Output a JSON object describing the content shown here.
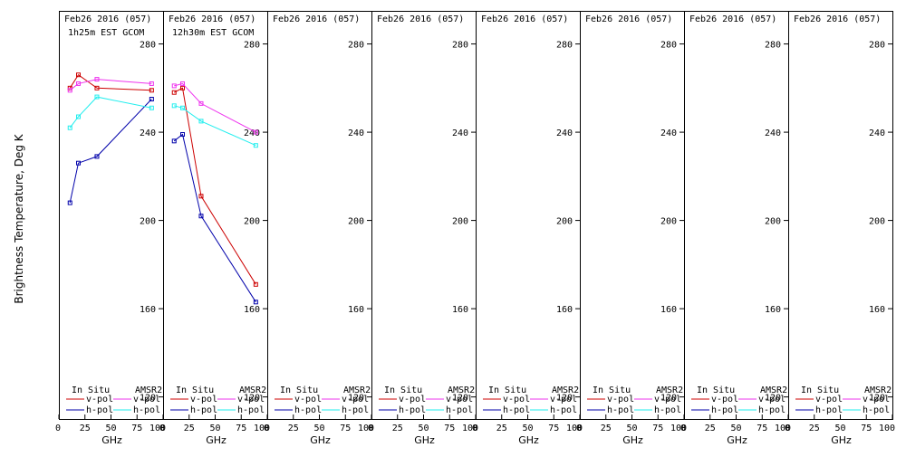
{
  "ylabel": "Brightness Temperature, Deg K",
  "xlabel": "GHz",
  "legend": {
    "insitu": "In Situ",
    "amsr2": "AMSR2",
    "vpol": "v-pol",
    "hpol": "h-pol"
  },
  "colors": {
    "insitu_v": "#cc0000",
    "insitu_h": "#0000aa",
    "amsr2_v": "#ee33ee",
    "amsr2_h": "#22eeee",
    "axis": "#000000"
  },
  "chart_data": {
    "type": "line",
    "xlim": [
      0,
      100
    ],
    "ylim": [
      110,
      295
    ],
    "xticks": [
      0,
      25,
      50,
      75,
      100
    ],
    "yticks": [
      120,
      160,
      200,
      240,
      280
    ],
    "panels": [
      {
        "title": "Feb26 2016 (057)",
        "subtitle": "1h25m EST GCOM",
        "series": [
          {
            "id": "insitu_v",
            "x": [
              10.65,
              18.7,
              36.5,
              89
            ],
            "y": [
              260,
              266,
              260,
              259
            ]
          },
          {
            "id": "insitu_h",
            "x": [
              10.65,
              18.7,
              36.5,
              89
            ],
            "y": [
              208,
              226,
              229,
              255
            ]
          },
          {
            "id": "amsr2_v",
            "x": [
              10.65,
              18.7,
              36.5,
              89
            ],
            "y": [
              259,
              262,
              264,
              262
            ]
          },
          {
            "id": "amsr2_h",
            "x": [
              10.65,
              18.7,
              36.5,
              89
            ],
            "y": [
              242,
              247,
              256,
              251
            ]
          }
        ]
      },
      {
        "title": "Feb26 2016 (057)",
        "subtitle": "12h30m EST GCOM",
        "series": [
          {
            "id": "insitu_v",
            "x": [
              10.65,
              18.7,
              36.5,
              89
            ],
            "y": [
              258,
              260,
              211,
              171
            ]
          },
          {
            "id": "insitu_h",
            "x": [
              10.65,
              18.7,
              36.5,
              89
            ],
            "y": [
              236,
              239,
              202,
              163
            ]
          },
          {
            "id": "amsr2_v",
            "x": [
              10.65,
              18.7,
              36.5,
              89
            ],
            "y": [
              261,
              262,
              253,
              240
            ]
          },
          {
            "id": "amsr2_h",
            "x": [
              10.65,
              18.7,
              36.5,
              89
            ],
            "y": [
              252,
              251,
              245,
              234
            ]
          }
        ]
      },
      {
        "title": "Feb26 2016 (057)",
        "subtitle": "",
        "series": []
      },
      {
        "title": "Feb26 2016 (057)",
        "subtitle": "",
        "series": []
      },
      {
        "title": "Feb26 2016 (057)",
        "subtitle": "",
        "series": []
      },
      {
        "title": "Feb26 2016 (057)",
        "subtitle": "",
        "series": []
      },
      {
        "title": "Feb26 2016 (057)",
        "subtitle": "",
        "series": []
      },
      {
        "title": "Feb26 2016 (057)",
        "subtitle": "",
        "series": []
      }
    ]
  }
}
